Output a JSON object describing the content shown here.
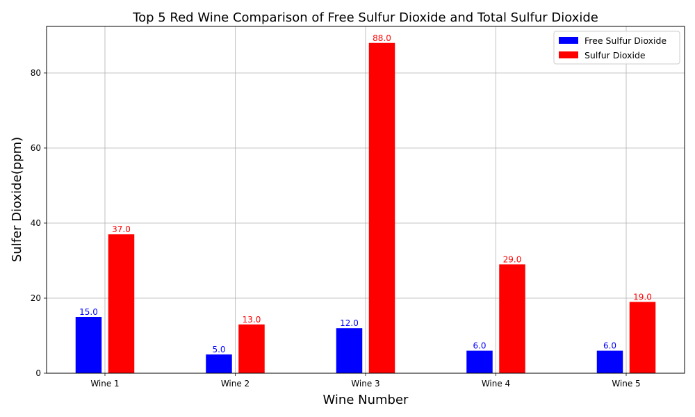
{
  "chart_data": {
    "type": "bar",
    "title": "Top 5 Red Wine Comparison of Free Sulfur Dioxide and Total Sulfur Dioxide",
    "xlabel": "Wine Number",
    "ylabel": "Sulfer Dioxide(ppm)",
    "categories": [
      "Wine 1",
      "Wine 2",
      "Wine 3",
      "Wine 4",
      "Wine 5"
    ],
    "series": [
      {
        "name": "Free Sulfur Dioxide",
        "color": "#0000ff",
        "values": [
          15.0,
          5.0,
          12.0,
          6.0,
          6.0
        ]
      },
      {
        "name": "Sulfur Dioxide",
        "color": "#ff0000",
        "values": [
          37.0,
          13.0,
          88.0,
          29.0,
          19.0
        ]
      }
    ],
    "ylim": [
      0,
      92.4
    ],
    "yticks": [
      0,
      20,
      40,
      60,
      80
    ],
    "grid": true,
    "legend_position": "top-right",
    "data_labels": true
  }
}
